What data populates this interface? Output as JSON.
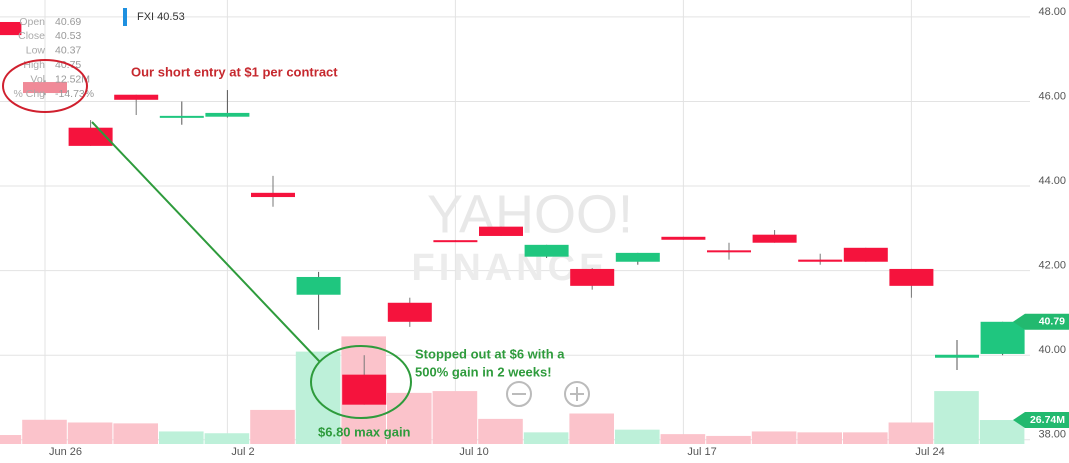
{
  "chart_data": {
    "type": "candlestick",
    "symbol_label": "FXI 40.53",
    "watermark": [
      "YAHOO!",
      "FINANCE"
    ],
    "info_rows": [
      [
        "Open",
        "40.69"
      ],
      [
        "Close",
        "40.53"
      ],
      [
        "Low",
        "40.37"
      ],
      [
        "High",
        "40.75"
      ],
      [
        "Vol",
        "12.52M"
      ],
      [
        "% Chg",
        "-14.73%"
      ]
    ],
    "categories": [
      null,
      null,
      null,
      null,
      null,
      null,
      null,
      null,
      null,
      null,
      null,
      null,
      null,
      null,
      null,
      null,
      null,
      null,
      null,
      null,
      null,
      null,
      null
    ],
    "open": [
      47.88,
      46.46,
      45.38,
      46.16,
      45.62,
      45.64,
      43.84,
      41.43,
      39.54,
      41.24,
      42.72,
      43.04,
      42.33,
      42.04,
      42.21,
      42.8,
      42.48,
      42.85,
      42.26,
      42.54,
      42.04,
      39.94,
      40.03
    ],
    "high": [
      47.88,
      46.5,
      45.56,
      46.16,
      46.0,
      46.27,
      44.24,
      41.97,
      40.0,
      41.36,
      42.72,
      43.04,
      42.61,
      42.06,
      42.42,
      42.8,
      42.66,
      42.96,
      42.4,
      42.54,
      42.04,
      40.36,
      40.79
    ],
    "low": [
      47.57,
      46.15,
      44.95,
      45.68,
      45.45,
      45.62,
      43.51,
      40.6,
      38.83,
      40.67,
      42.68,
      42.82,
      42.3,
      41.55,
      42.14,
      42.73,
      42.26,
      42.66,
      42.14,
      42.21,
      41.36,
      39.65,
      40.0
    ],
    "close": [
      47.57,
      46.2,
      44.95,
      46.04,
      45.66,
      45.73,
      43.74,
      41.85,
      38.83,
      40.79,
      42.68,
      42.82,
      42.61,
      41.64,
      42.42,
      42.73,
      42.46,
      42.66,
      42.21,
      42.21,
      41.64,
      40.01,
      40.79
    ],
    "volume": {
      "values": [
        10,
        27,
        24,
        23,
        14,
        12,
        38,
        103,
        120,
        57,
        59,
        28,
        13,
        34,
        16,
        11,
        9,
        14,
        13,
        13,
        24,
        59,
        26.74
      ],
      "value_labels": [
        null,
        null,
        null,
        null,
        null,
        null,
        null,
        null,
        null,
        null,
        null,
        null,
        null,
        null,
        null,
        null,
        null,
        null,
        null,
        null,
        null,
        null,
        "26.74M"
      ],
      "ylim": [
        0,
        495
      ]
    },
    "ylim": [
      37.9,
      48.4
    ],
    "yticks": [
      {
        "value": 38,
        "label": "38.00"
      },
      {
        "value": 40,
        "label": "40.00"
      },
      {
        "value": 42,
        "label": "42.00"
      },
      {
        "value": 44,
        "label": "44.00"
      },
      {
        "value": 46,
        "label": "46.00"
      },
      {
        "value": 48,
        "label": "48.00"
      }
    ],
    "xticks": [
      {
        "value": 1,
        "label": "Jun 26"
      },
      {
        "value": 5,
        "label": "Jul 2"
      },
      {
        "value": 10,
        "label": "Jul 10"
      },
      {
        "value": 15,
        "label": "Jul 17"
      },
      {
        "value": 20,
        "label": "Jul 24"
      }
    ],
    "grid": true,
    "up_color": "#1fc67f",
    "down_color": "#f5133d",
    "volume_up_color": "#bdf0d9",
    "volume_down_color": "#fbc3cb",
    "annotations": [
      {
        "text": "Our short entry at $1 per contract",
        "color": "#c6282e"
      },
      {
        "text": "Stopped out at $6 with a",
        "color": "#2e9b3c"
      },
      {
        "text": "500% gain in 2 weeks!",
        "color": "#2e9b3c"
      },
      {
        "text": "$6.80 max gain",
        "color": "#2e9b3c"
      }
    ]
  }
}
